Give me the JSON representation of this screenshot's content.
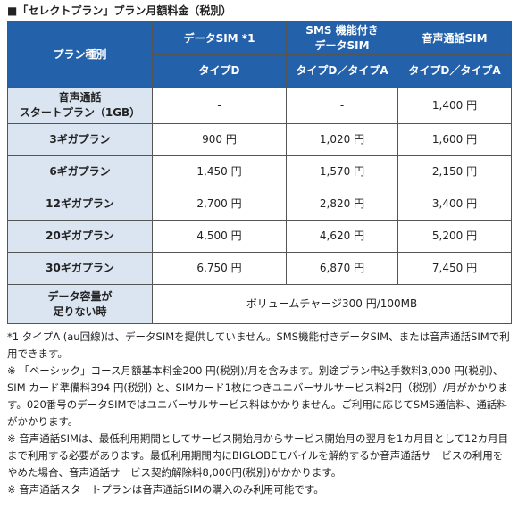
{
  "header": {
    "title": "■「セレクトプラン」プラン月額料金（税別）"
  },
  "table": {
    "header_row1": [
      "プラン種別",
      "データSIM *1",
      "SMS 機能付き\nデータSIM",
      "音声通話SIM"
    ],
    "header_row2": [
      "タイプD",
      "タイプD／タイプA",
      "タイプD／タイプA"
    ],
    "rows": [
      [
        "音声通話\nスタートプラン（1GB）",
        "-",
        "-",
        "1,400 円"
      ],
      [
        "3ギガプラン",
        "900 円",
        "1,020 円",
        "1,600 円"
      ],
      [
        "6ギガプラン",
        "1,450 円",
        "1,570 円",
        "2,150 円"
      ],
      [
        "12ギガプラン",
        "2,700 円",
        "2,820 円",
        "3,400 円"
      ],
      [
        "20ギガプラン",
        "4,500 円",
        "4,620 円",
        "5,200 円"
      ],
      [
        "30ギガプラン",
        "6,750 円",
        "6,870 円",
        "7,450 円"
      ]
    ],
    "footer_row": [
      "データ容量が\n足りない時",
      "ボリュームチャージ300 円/100MB"
    ]
  },
  "notes": [
    "*1 タイプA (au回線)は、データSIMを提供していません。SMS機能付きデータSIM、または音声通話SIMで利用できます。",
    "※ 「ベーシック」コース月額基本料金200 円(税別)/月を含みます。別途プラン申込手数料3,000 円(税別)、SIM カード準備料394 円(税別) と、SIMカード1枚につきユニバーサルサービス料2円（税別）/月がかかります。020番号のデータSIMではユニバーサルサービス料はかかりません。ご利用に応じてSMS通信料、通話料がかかります。",
    "※ 音声通話SIMは、最低利用期間としてサービス開始月からサービス開始月の翌月を1カ月目として12カ月目まで利用する必要があります。最低利用期間内にBIGLOBEモバイルを解約するか音声通話サービスの利用をやめた場合、音声通話サービス契約解除料8,000円(税別)がかかります。",
    "※ 音声通話スタートプランは音声通話SIMの購入のみ利用可能です。"
  ]
}
